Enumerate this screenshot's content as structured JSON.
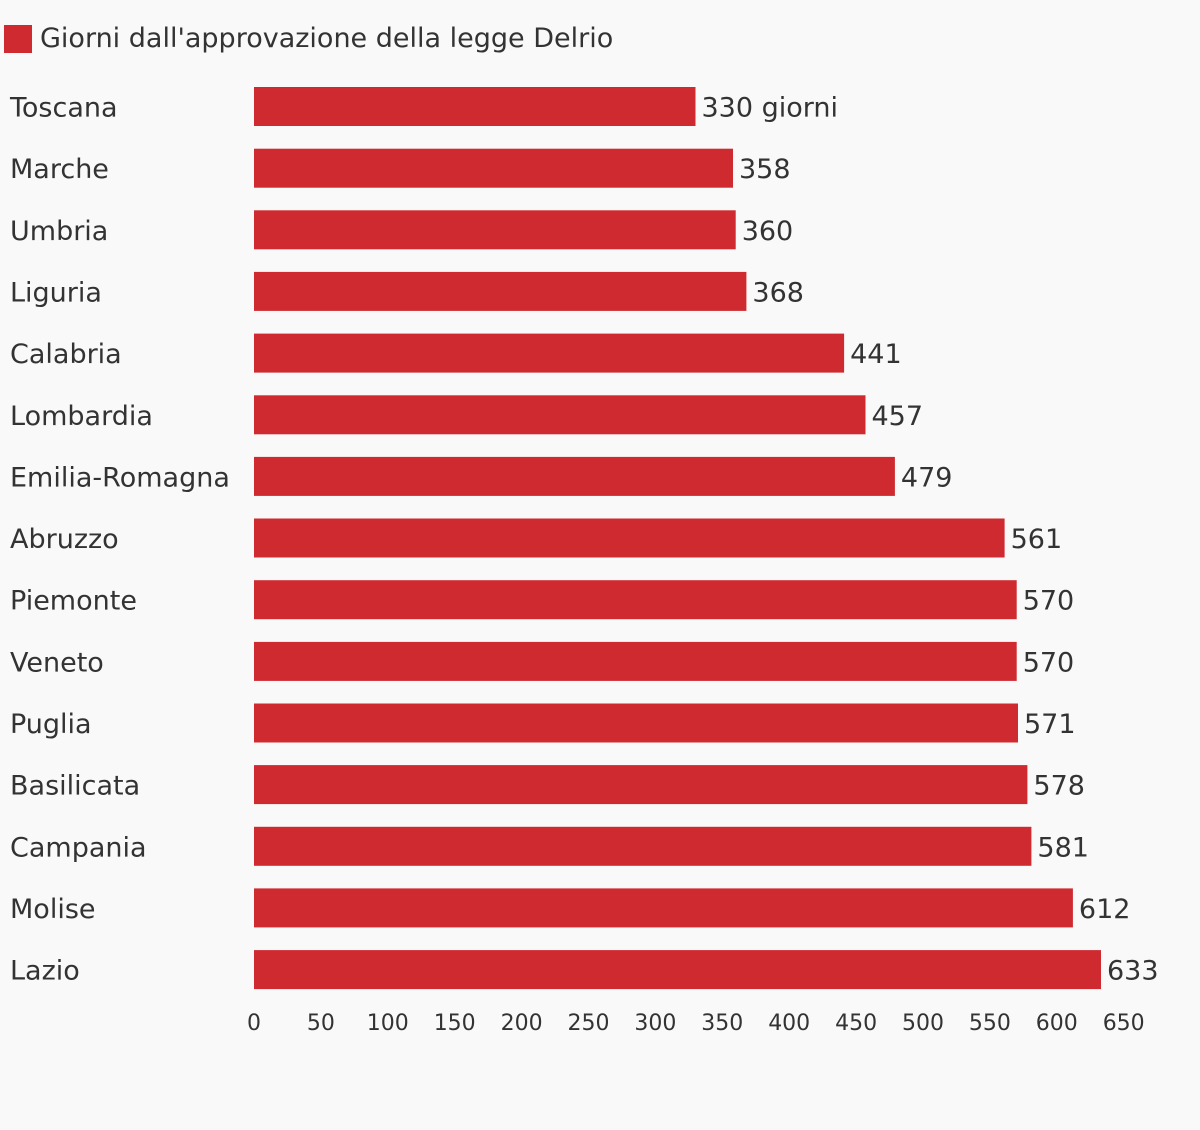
{
  "legend": {
    "label": "Giorni dall'approvazione della legge Delrio",
    "color": "#cf2a30"
  },
  "chart_data": {
    "type": "bar",
    "orientation": "horizontal",
    "categories": [
      "Toscana",
      "Marche",
      "Umbria",
      "Liguria",
      "Calabria",
      "Lombardia",
      "Emilia-Romagna",
      "Abruzzo",
      "Piemonte",
      "Veneto",
      "Puglia",
      "Basilicata",
      "Campania",
      "Molise",
      "Lazio"
    ],
    "series": [
      {
        "name": "Giorni dall'approvazione della legge Delrio",
        "values": [
          330,
          358,
          360,
          368,
          441,
          457,
          479,
          561,
          570,
          570,
          571,
          578,
          581,
          612,
          633
        ],
        "color": "#cf2a30"
      }
    ],
    "data_labels": [
      "330 giorni",
      "358",
      "360",
      "368",
      "441",
      "457",
      "479",
      "561",
      "570",
      "570",
      "571",
      "578",
      "581",
      "612",
      "633"
    ],
    "x_ticks": [
      "0",
      "50",
      "100",
      "150",
      "200",
      "250",
      "300",
      "350",
      "400",
      "450",
      "500",
      "550",
      "600",
      "650"
    ],
    "xlim": [
      0,
      650
    ],
    "grid": false,
    "legend_position": "top-left"
  }
}
